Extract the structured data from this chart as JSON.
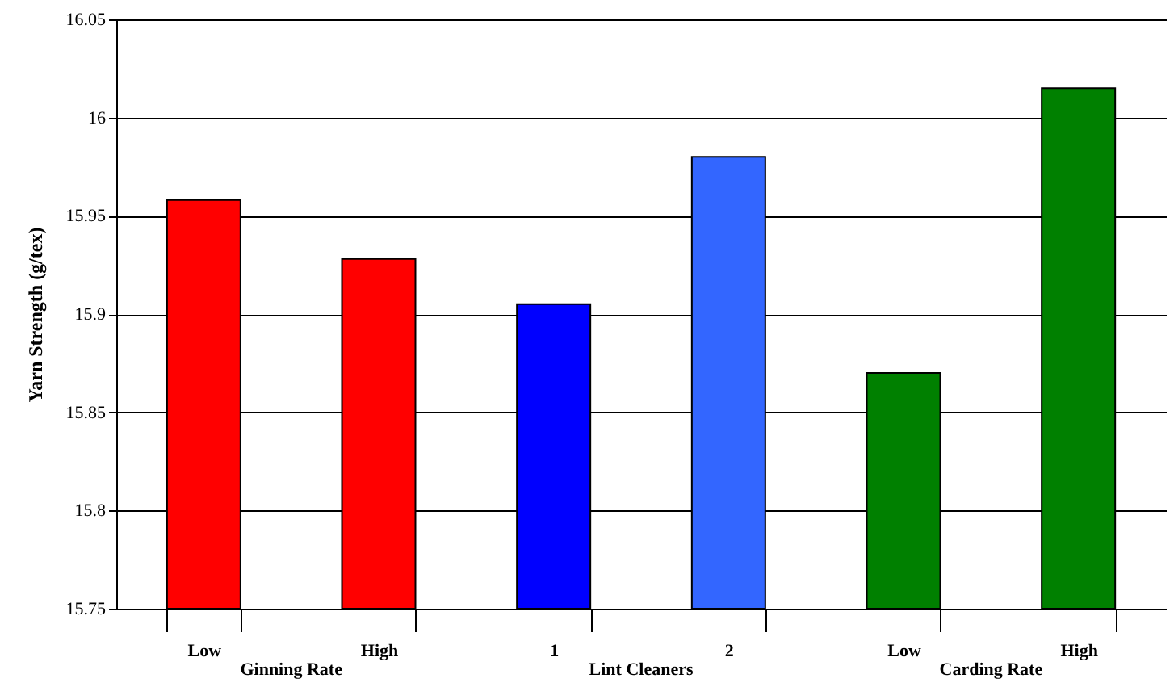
{
  "chart_data": {
    "type": "bar",
    "ylabel": "Yarn Strength (g/tex)",
    "categories": [
      "Low",
      "High",
      "1",
      "2",
      "Low",
      "High"
    ],
    "values": [
      15.958,
      15.928,
      15.905,
      15.98,
      15.87,
      16.015
    ],
    "colors": [
      "#ff0000",
      "#ff0000",
      "#0000ff",
      "#3366ff",
      "#008000",
      "#008000"
    ],
    "ylim": [
      15.75,
      16.05
    ],
    "yticks": [
      15.75,
      15.8,
      15.85,
      15.9,
      15.95,
      16,
      16.05
    ],
    "grid": "y",
    "annotations": [
      "Ginning Rate",
      "Lint Cleaners",
      "Carding Rate"
    ]
  }
}
